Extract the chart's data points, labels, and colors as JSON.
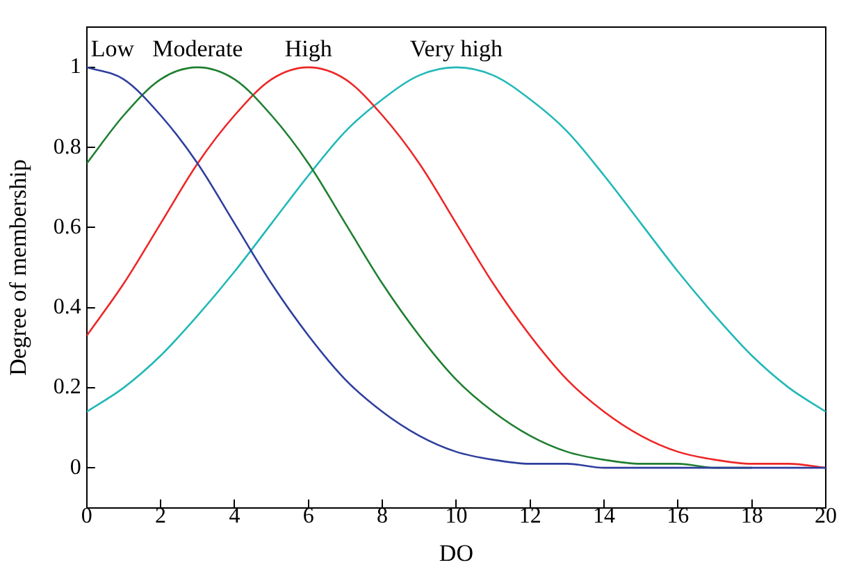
{
  "chart_data": {
    "type": "line",
    "xlabel": "DO",
    "ylabel": "Degree of membership",
    "x": [
      0,
      1,
      2,
      3,
      4,
      5,
      6,
      7,
      8,
      9,
      10,
      11,
      12,
      13,
      14,
      15,
      16,
      17,
      18,
      19,
      20
    ],
    "series": [
      {
        "name": "Low",
        "color": "#2e3f9e",
        "values": [
          1,
          0.97,
          0.88,
          0.76,
          0.61,
          0.46,
          0.33,
          0.22,
          0.14,
          0.08,
          0.04,
          0.02,
          0.01,
          0.01,
          0,
          0,
          0,
          0,
          0,
          0,
          0
        ]
      },
      {
        "name": "Moderate",
        "color": "#1e7f30",
        "values": [
          0.76,
          0.88,
          0.97,
          1,
          0.97,
          0.88,
          0.76,
          0.61,
          0.46,
          0.33,
          0.22,
          0.14,
          0.08,
          0.04,
          0.02,
          0.01,
          0.01,
          0,
          0,
          null,
          null
        ]
      },
      {
        "name": "High",
        "color": "#ee2626",
        "values": [
          0.33,
          0.46,
          0.61,
          0.76,
          0.88,
          0.97,
          1,
          0.97,
          0.88,
          0.76,
          0.61,
          0.46,
          0.33,
          0.22,
          0.14,
          0.08,
          0.04,
          0.02,
          0.01,
          0.01,
          0
        ]
      },
      {
        "name": "Very high",
        "color": "#22b8b8",
        "values": [
          0.14,
          0.2,
          0.28,
          0.38,
          0.49,
          0.61,
          0.73,
          0.84,
          0.92,
          0.98,
          1,
          0.98,
          0.92,
          0.84,
          0.73,
          0.61,
          0.49,
          0.38,
          0.28,
          0.2,
          0.14
        ]
      }
    ],
    "xlim": [
      0,
      20
    ],
    "xticks": [
      0,
      2,
      4,
      6,
      8,
      10,
      12,
      14,
      16,
      18,
      20
    ],
    "ylim": [
      -0.1,
      1.1
    ],
    "yticks": [
      0,
      0.2,
      0.4,
      0.6,
      0.8,
      1
    ],
    "grid": false,
    "legend": false,
    "marker": "none",
    "line_style": "solid"
  }
}
